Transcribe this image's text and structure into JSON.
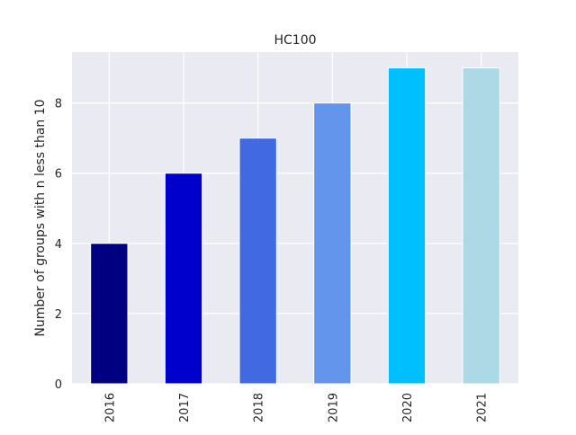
{
  "chart_data": {
    "type": "bar",
    "title": "HC100",
    "xlabel": "",
    "ylabel": "Number of groups with n less than 10",
    "categories": [
      "2016",
      "2017",
      "2018",
      "2019",
      "2020",
      "2021"
    ],
    "values": [
      4,
      6,
      7,
      8,
      9,
      9
    ],
    "bar_colors": [
      "#000080",
      "#0000cd",
      "#4169e1",
      "#6495ed",
      "#00bfff",
      "#add8e6"
    ],
    "ylim": [
      0,
      9.45
    ],
    "yticks": [
      0,
      2,
      4,
      6,
      8
    ],
    "grid": true,
    "background_color": "#eaeaf2",
    "legend": "none"
  }
}
